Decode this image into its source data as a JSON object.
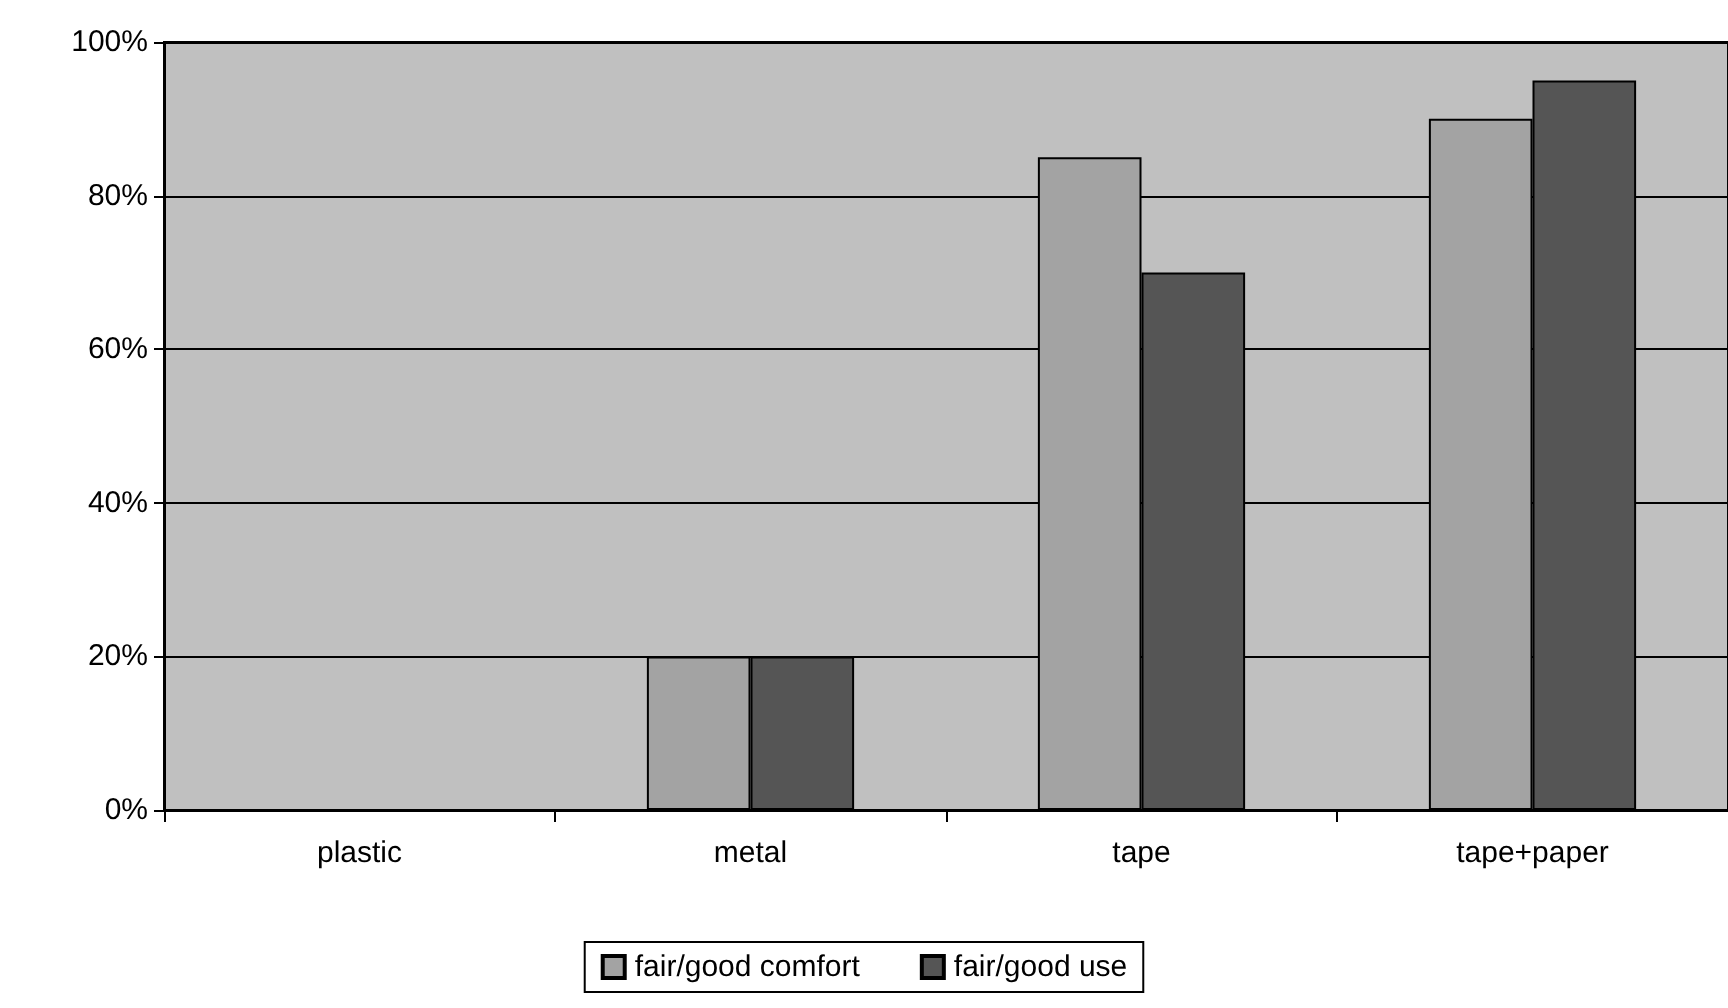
{
  "chart_data": {
    "type": "bar",
    "categories": [
      "plastic",
      "metal",
      "tape",
      "tape+paper"
    ],
    "series": [
      {
        "name": "fair/good comfort",
        "color": "#a3a3a3",
        "values": [
          0,
          20,
          85,
          90
        ]
      },
      {
        "name": "fair/good use",
        "color": "#555555",
        "values": [
          0,
          20,
          70,
          95
        ]
      }
    ],
    "ylim": [
      0,
      100
    ],
    "yticks": [
      {
        "value": 0,
        "label": "0%"
      },
      {
        "value": 20,
        "label": "20%"
      },
      {
        "value": 40,
        "label": "40%"
      },
      {
        "value": 60,
        "label": "60%"
      },
      {
        "value": 80,
        "label": "80%"
      },
      {
        "value": 100,
        "label": "100%"
      }
    ],
    "grid": "y",
    "legend": "bottom"
  }
}
